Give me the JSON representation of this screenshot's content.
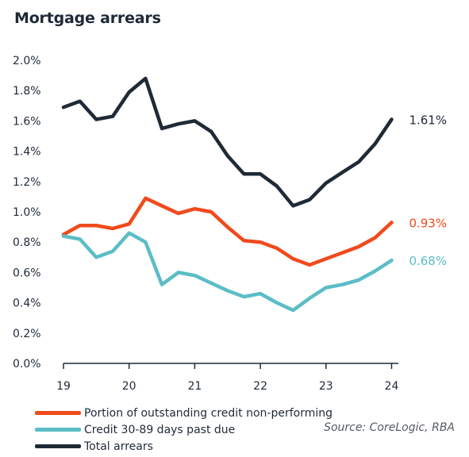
{
  "chart_data": {
    "type": "line",
    "title": "Mortgage arrears",
    "source": "Source:  CoreLogic, RBA",
    "xlim": [
      19,
      24.2
    ],
    "ylim": [
      0,
      2.0
    ],
    "x_ticks": [
      {
        "value": 19,
        "label": "19"
      },
      {
        "value": 20,
        "label": "20"
      },
      {
        "value": 21,
        "label": "21"
      },
      {
        "value": 22,
        "label": "22"
      },
      {
        "value": 23,
        "label": "23"
      },
      {
        "value": 24,
        "label": "24"
      }
    ],
    "y_ticks": [
      {
        "value": 0.0,
        "label": "0.0%"
      },
      {
        "value": 0.2,
        "label": "0.2%"
      },
      {
        "value": 0.4,
        "label": "0.4%"
      },
      {
        "value": 0.6,
        "label": "0.6%"
      },
      {
        "value": 0.8,
        "label": "0.8%"
      },
      {
        "value": 1.0,
        "label": "1.0%"
      },
      {
        "value": 1.2,
        "label": "1.2%"
      },
      {
        "value": 1.4,
        "label": "1.4%"
      },
      {
        "value": 1.6,
        "label": "1.6%"
      },
      {
        "value": 1.8,
        "label": "1.8%"
      },
      {
        "value": 2.0,
        "label": "2.0%"
      }
    ],
    "x": [
      19.0,
      19.25,
      19.5,
      19.75,
      20.0,
      20.25,
      20.5,
      20.75,
      21.0,
      21.25,
      21.5,
      21.75,
      22.0,
      22.25,
      22.5,
      22.75,
      23.0,
      23.25,
      23.5,
      23.75,
      24.0
    ],
    "series": [
      {
        "name": "Portion of outstanding credit non-performing",
        "color": "#f04a1c",
        "end_label": "0.93%",
        "values": [
          0.85,
          0.91,
          0.91,
          0.89,
          0.92,
          1.09,
          1.04,
          0.99,
          1.02,
          1.0,
          0.9,
          0.81,
          0.8,
          0.76,
          0.69,
          0.65,
          0.69,
          0.73,
          0.77,
          0.83,
          0.93
        ]
      },
      {
        "name": "Credit 30-89 days past due",
        "color": "#5bbdc6",
        "end_label": "0.68%",
        "values": [
          0.84,
          0.82,
          0.7,
          0.74,
          0.86,
          0.8,
          0.52,
          0.6,
          0.58,
          0.53,
          0.48,
          0.44,
          0.46,
          0.4,
          0.35,
          0.43,
          0.5,
          0.52,
          0.55,
          0.61,
          0.68
        ]
      },
      {
        "name": "Total arrears",
        "color": "#1f2a36",
        "end_label": "1.61%",
        "values": [
          1.69,
          1.73,
          1.61,
          1.63,
          1.79,
          1.88,
          1.55,
          1.58,
          1.6,
          1.53,
          1.37,
          1.25,
          1.25,
          1.17,
          1.04,
          1.08,
          1.19,
          1.26,
          1.33,
          1.45,
          1.61
        ]
      }
    ],
    "legend": {
      "placement": "bottom-left"
    },
    "grid": false
  }
}
